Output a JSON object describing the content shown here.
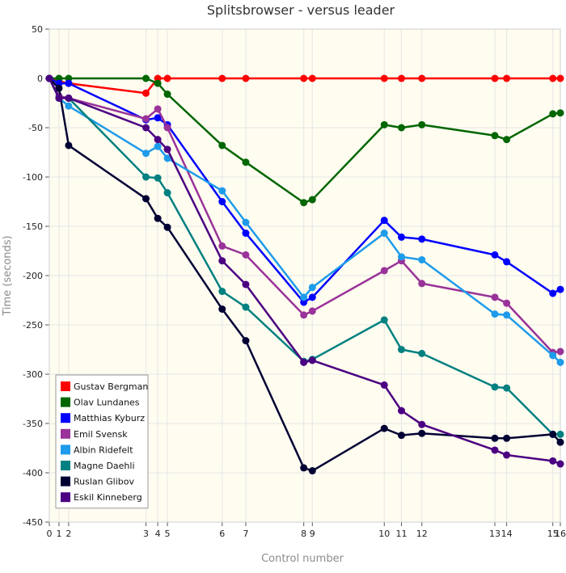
{
  "chart_data": {
    "type": "line",
    "title": "Splitsbrowser - versus leader",
    "xlabel": "Control number",
    "ylabel": "Time (seconds)",
    "ylim": [
      -450,
      50
    ],
    "yticks": [
      50,
      0,
      -50,
      -100,
      -150,
      -200,
      -250,
      -300,
      -350,
      -400,
      -450
    ],
    "x_tick_labels": [
      "0",
      "1",
      "2",
      "3",
      "4",
      "5",
      "6",
      "7",
      "8",
      "9",
      "10",
      "11",
      "12",
      "13",
      "14",
      "15",
      "16"
    ],
    "x": [
      0,
      9,
      18,
      90,
      101,
      110,
      161,
      183,
      237,
      245,
      312,
      328,
      347,
      415,
      426,
      469,
      476
    ],
    "xlim": [
      0,
      476
    ],
    "grid": true,
    "legend_position": "bottom-left",
    "series": [
      {
        "name": "Gustav Bergman",
        "color": "#ff0000",
        "values": [
          0,
          -3,
          -5,
          -15,
          0,
          0,
          0,
          0,
          0,
          0,
          0,
          0,
          0,
          0,
          0,
          0,
          0
        ]
      },
      {
        "name": "Olav Lundanes",
        "color": "#006600",
        "values": [
          0,
          0,
          0,
          0,
          -5,
          -16,
          -68,
          -85,
          -126,
          -123,
          -47,
          -50,
          -47,
          -58,
          -62,
          -36,
          -35
        ]
      },
      {
        "name": "Matthias Kyburz",
        "color": "#0000ff",
        "values": [
          0,
          -5,
          -5,
          -42,
          -40,
          -47,
          -125,
          -157,
          -227,
          -222,
          -144,
          -161,
          -163,
          -179,
          -186,
          -218,
          -214
        ]
      },
      {
        "name": "Emil Svensk",
        "color": "#993399",
        "values": [
          0,
          -18,
          -20,
          -41,
          -31,
          -50,
          -170,
          -179,
          -240,
          -236,
          -195,
          -185,
          -208,
          -222,
          -228,
          -278,
          -277
        ]
      },
      {
        "name": "Albin Ridefelt",
        "color": "#1e9bea",
        "values": [
          0,
          -20,
          -28,
          -76,
          -69,
          -81,
          -114,
          -146,
          -222,
          -212,
          -157,
          -181,
          -184,
          -239,
          -240,
          -281,
          -288
        ]
      },
      {
        "name": "Magne Daehli",
        "color": "#008080",
        "values": [
          0,
          -20,
          -20,
          -100,
          -101,
          -116,
          -216,
          -232,
          -287,
          -285,
          -245,
          -275,
          -279,
          -313,
          -314,
          -361,
          -361
        ]
      },
      {
        "name": "Ruslan Glibov",
        "color": "#000033",
        "values": [
          0,
          -10,
          -68,
          -122,
          -142,
          -151,
          -234,
          -266,
          -395,
          -398,
          -355,
          -362,
          -360,
          -365,
          -365,
          -361,
          -369
        ]
      },
      {
        "name": "Eskil Kinneberg",
        "color": "#4b0082",
        "values": [
          0,
          -20,
          -20,
          -50,
          -62,
          -72,
          -185,
          -209,
          -288,
          -286,
          -311,
          -337,
          -351,
          -377,
          -382,
          -388,
          -391
        ]
      }
    ]
  }
}
